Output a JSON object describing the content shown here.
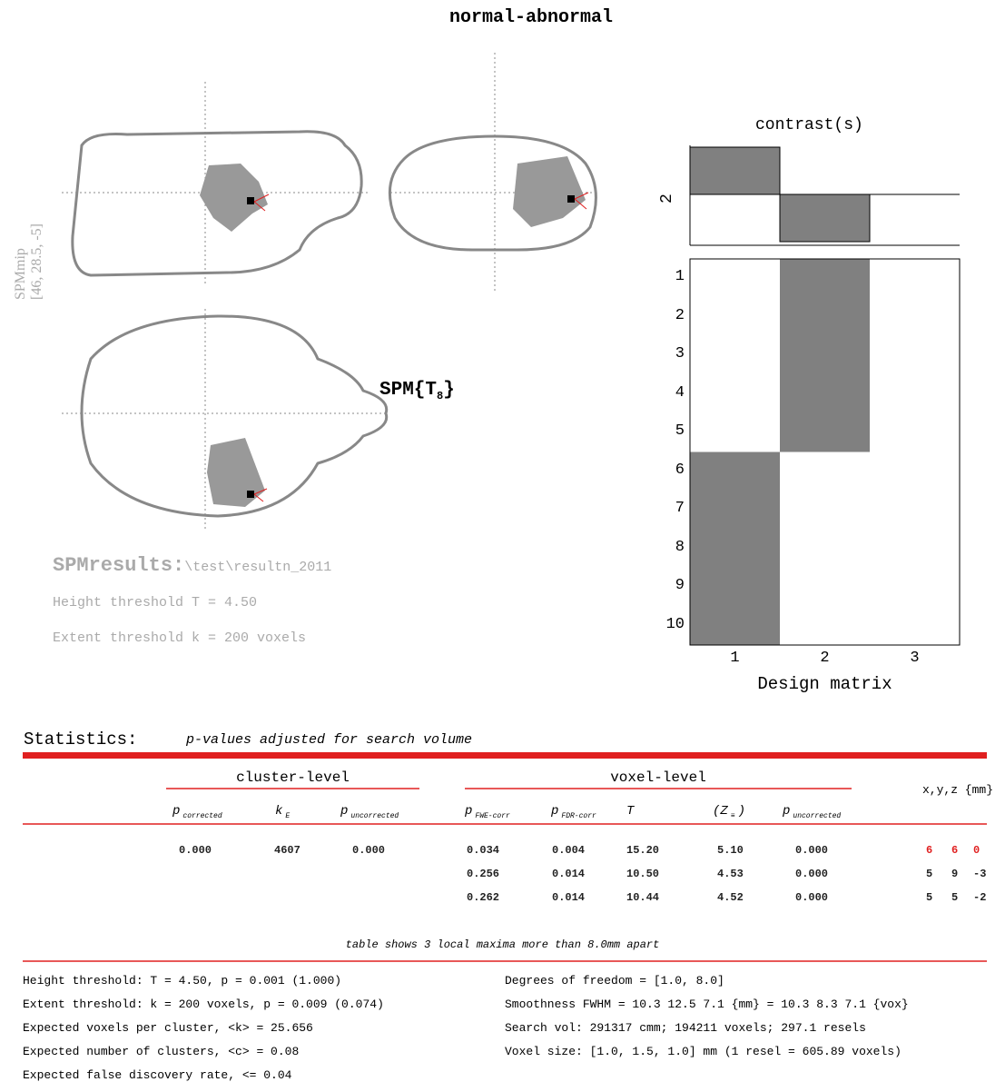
{
  "title": "normal-abnormal",
  "mip": {
    "label": "SPMmip",
    "coords": "[46, 28.5, -5]",
    "stat": {
      "main": "SPM{T",
      "sub": "8",
      "tail": "}"
    }
  },
  "results": {
    "label": "SPMresults:",
    "path": "\\test\\resultn_2011",
    "height": "Height threshold T = 4.50",
    "extent": "Extent threshold k = 200 voxels"
  },
  "contrast": {
    "title": "contrast(s)",
    "label": "2",
    "weights": [
      1,
      -1,
      0
    ]
  },
  "design": {
    "matrix": [
      [
        0,
        1,
        0
      ],
      [
        0,
        1,
        0
      ],
      [
        0,
        1,
        0
      ],
      [
        0,
        1,
        0
      ],
      [
        0,
        1,
        0
      ],
      [
        1,
        0,
        0
      ],
      [
        1,
        0,
        0
      ],
      [
        1,
        0,
        0
      ],
      [
        1,
        0,
        0
      ],
      [
        1,
        0,
        0
      ]
    ],
    "row_ticks": [
      1,
      2,
      3,
      4,
      5,
      6,
      7,
      8,
      9,
      10
    ],
    "col_ticks": [
      1,
      2,
      3
    ],
    "xlabel": "Design matrix"
  },
  "statistics": {
    "heading": "Statistics:",
    "subtitle": "p-values adjusted for search volume",
    "groups": [
      "cluster-level",
      "voxel-level",
      "x,y,z {mm}"
    ],
    "columns": [
      {
        "main": "p",
        "sub": "corrected"
      },
      {
        "main": "k",
        "sub": "E"
      },
      {
        "main": "p",
        "sub": "uncorrected"
      },
      {
        "main": "p",
        "sub": "FWE-corr"
      },
      {
        "main": "p",
        "sub": "FDR-corr"
      },
      {
        "main": "T",
        "sub": ""
      },
      {
        "main": "(Z",
        "sub": "≡",
        "tail": ")"
      },
      {
        "main": "p",
        "sub": "uncorrected"
      }
    ],
    "rows": [
      [
        "0.000",
        "4607",
        "0.000",
        "0.034",
        "0.004",
        "15.20",
        "5.10",
        "0.000",
        "6",
        "6",
        "0"
      ],
      [
        "",
        "",
        "",
        "0.256",
        "0.014",
        "10.50",
        "4.53",
        "0.000",
        "5",
        "9",
        "-3"
      ],
      [
        "",
        "",
        "",
        "0.262",
        "0.014",
        "10.44",
        "4.52",
        "0.000",
        "5",
        "5",
        "-2"
      ]
    ],
    "footnote": "table shows 3 local maxima more than 8.0mm apart",
    "footer_left": [
      "Height threshold: T = 4.50, p = 0.001 (1.000)",
      "Extent threshold: k = 200 voxels, p = 0.009 (0.074)",
      "Expected voxels per cluster, <k> = 25.656",
      "Expected number of clusters, <c> = 0.08",
      "Expected false discovery rate, <= 0.04"
    ],
    "footer_right": [
      "Degrees of freedom = [1.0, 8.0]",
      "Smoothness FWHM = 10.3 12.5 7.1 {mm}  = 10.3 8.3 7.1 {vox}",
      "Search vol: 291317 cmm; 194211 voxels; 297.1 resels",
      "Voxel size: [1.0, 1.5, 1.0] mm  (1 resel = 605.89 voxels)"
    ]
  }
}
